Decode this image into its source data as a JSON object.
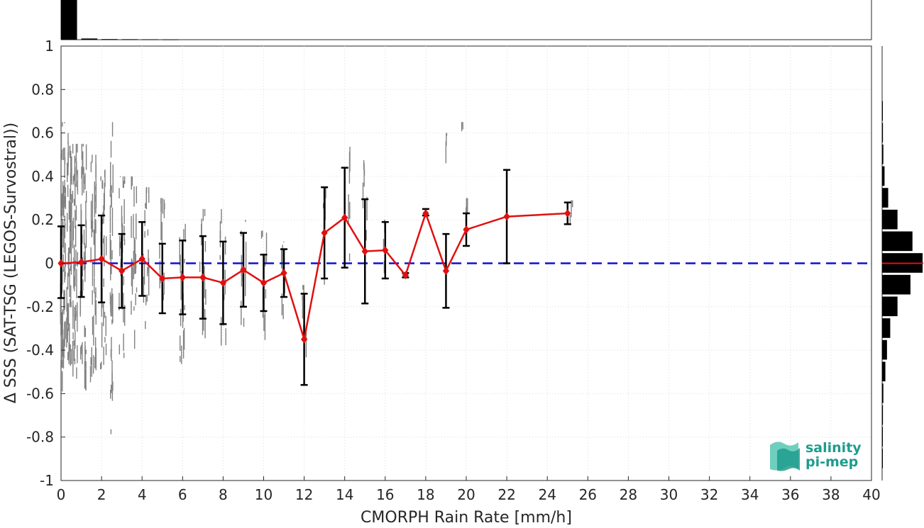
{
  "chart_data": {
    "type": "scatter",
    "xlabel": "CMORPH Rain Rate [mm/h]",
    "ylabel": "Δ SSS (SAT-TSG (LEGOS-Survostral))",
    "xlim": [
      0,
      40
    ],
    "ylim": [
      -1,
      1
    ],
    "x_ticks": [
      0,
      2,
      4,
      6,
      8,
      10,
      12,
      14,
      16,
      18,
      20,
      22,
      24,
      26,
      28,
      30,
      32,
      34,
      36,
      38,
      40
    ],
    "y_ticks": [
      -1,
      -0.8,
      -0.6,
      -0.4,
      -0.2,
      0,
      0.2,
      0.4,
      0.6,
      0.8,
      1
    ],
    "y_tick_labels": [
      "-1",
      "-0.8",
      "-0.6",
      "-0.4",
      "-0.2",
      "0",
      "0.2",
      "0.4",
      "0.6",
      "0.8",
      "1"
    ],
    "grid": true,
    "zero_line": {
      "y": 0,
      "color": "#1010d0",
      "style": "dashed"
    },
    "series": [
      {
        "type": "line-with-errorbars",
        "color": "#e01010",
        "errorbar_color": "#000000",
        "x": [
          0,
          1,
          2,
          3,
          4,
          5,
          6,
          7,
          8,
          9,
          10,
          11,
          12,
          13,
          14,
          15,
          16,
          17,
          18,
          19,
          20,
          22,
          25
        ],
        "y": [
          0.0,
          0.005,
          0.02,
          -0.035,
          0.02,
          -0.07,
          -0.065,
          -0.065,
          -0.09,
          -0.03,
          -0.09,
          -0.045,
          -0.35,
          0.14,
          0.21,
          0.055,
          0.06,
          -0.055,
          0.23,
          -0.035,
          0.155,
          0.215,
          0.23
        ],
        "err_low": [
          0.16,
          0.16,
          0.2,
          0.17,
          0.17,
          0.16,
          0.17,
          0.19,
          0.19,
          0.17,
          0.13,
          0.11,
          0.21,
          0.21,
          0.23,
          0.24,
          0.13,
          0.01,
          0.01,
          0.17,
          0.075,
          0.215,
          0.05
        ],
        "err_high": [
          0.17,
          0.17,
          0.2,
          0.17,
          0.17,
          0.16,
          0.17,
          0.19,
          0.19,
          0.17,
          0.13,
          0.11,
          0.21,
          0.21,
          0.23,
          0.24,
          0.13,
          0.01,
          0.02,
          0.17,
          0.075,
          0.215,
          0.05
        ]
      }
    ],
    "scatter_raw": {
      "color": "#808080",
      "clusters": [
        {
          "x": 0.1,
          "ymin": -0.6,
          "ymax": 0.65,
          "n": 60,
          "spread": 0.25
        },
        {
          "x": 0.4,
          "ymin": -0.5,
          "ymax": 0.6,
          "n": 55,
          "spread": 0.25
        },
        {
          "x": 0.7,
          "ymin": -0.55,
          "ymax": 0.55,
          "n": 45,
          "spread": 0.25
        },
        {
          "x": 1.1,
          "ymin": -0.6,
          "ymax": 0.55,
          "n": 40,
          "spread": 0.3
        },
        {
          "x": 1.6,
          "ymin": -0.55,
          "ymax": 0.5,
          "n": 35,
          "spread": 0.3
        },
        {
          "x": 2.1,
          "ymin": -0.5,
          "ymax": 0.5,
          "n": 30,
          "spread": 0.3
        },
        {
          "x": 2.5,
          "ymin": -0.9,
          "ymax": 0.65,
          "n": 30,
          "spread": 0.15
        },
        {
          "x": 3.0,
          "ymin": -0.45,
          "ymax": 0.4,
          "n": 25,
          "spread": 0.3
        },
        {
          "x": 3.6,
          "ymin": -0.4,
          "ymax": 0.4,
          "n": 22,
          "spread": 0.3
        },
        {
          "x": 4.2,
          "ymin": -0.35,
          "ymax": 0.35,
          "n": 20,
          "spread": 0.3
        },
        {
          "x": 5.0,
          "ymin": -0.4,
          "ymax": 0.3,
          "n": 18,
          "spread": 0.3
        },
        {
          "x": 6.0,
          "ymin": -0.5,
          "ymax": 0.3,
          "n": 16,
          "spread": 0.3
        },
        {
          "x": 7.0,
          "ymin": -0.35,
          "ymax": 0.25,
          "n": 14,
          "spread": 0.3
        },
        {
          "x": 8.0,
          "ymin": -0.4,
          "ymax": 0.25,
          "n": 12,
          "spread": 0.3
        },
        {
          "x": 9.0,
          "ymin": -0.3,
          "ymax": 0.2,
          "n": 10,
          "spread": 0.3
        },
        {
          "x": 10.0,
          "ymin": -0.4,
          "ymax": 0.15,
          "n": 9,
          "spread": 0.3
        },
        {
          "x": 11.0,
          "ymin": -0.3,
          "ymax": 0.1,
          "n": 8,
          "spread": 0.3
        },
        {
          "x": 12.0,
          "ymin": -0.5,
          "ymax": -0.1,
          "n": 6,
          "spread": 0.2
        },
        {
          "x": 13.0,
          "ymin": -0.1,
          "ymax": 0.35,
          "n": 6,
          "spread": 0.2
        },
        {
          "x": 14.2,
          "ymin": 0.0,
          "ymax": 0.55,
          "n": 6,
          "spread": 0.2
        },
        {
          "x": 15.0,
          "ymin": -0.2,
          "ymax": 0.5,
          "n": 6,
          "spread": 0.2
        },
        {
          "x": 16.0,
          "ymin": -0.05,
          "ymax": 0.2,
          "n": 4,
          "spread": 0.2
        },
        {
          "x": 19.8,
          "ymin": 0.5,
          "ymax": 0.65,
          "n": 3,
          "spread": 0.1
        },
        {
          "x": 19.0,
          "ymin": 0.45,
          "ymax": 0.6,
          "n": 3,
          "spread": 0.1
        },
        {
          "x": 20.0,
          "ymin": 0.05,
          "ymax": 0.3,
          "n": 4,
          "spread": 0.2
        },
        {
          "x": 25.2,
          "ymin": 0.18,
          "ymax": 0.29,
          "n": 4,
          "spread": 0.15
        }
      ]
    },
    "top_histogram": {
      "bins": [
        0.5,
        1.5,
        2.5,
        3.5,
        4.5,
        5.5
      ],
      "values": [
        1.0,
        0.03,
        0.015,
        0.012,
        0.01,
        0.008
      ],
      "color": "#000000"
    },
    "right_histogram": {
      "bins": [
        -0.9,
        -0.8,
        -0.7,
        -0.6,
        -0.5,
        -0.4,
        -0.3,
        -0.2,
        -0.1,
        0.0,
        0.1,
        0.2,
        0.3,
        0.4,
        0.5,
        0.6,
        0.7
      ],
      "values": [
        0.01,
        0.015,
        0.02,
        0.03,
        0.08,
        0.12,
        0.2,
        0.38,
        0.7,
        1.0,
        0.75,
        0.38,
        0.15,
        0.06,
        0.03,
        0.02,
        0.01
      ],
      "median_marker_color": "#e01010",
      "color": "#000000"
    }
  },
  "logo": {
    "line1": "salinity",
    "line2": "pi-mep",
    "colors": [
      "#1e9c8c",
      "#6fcfbf"
    ]
  }
}
